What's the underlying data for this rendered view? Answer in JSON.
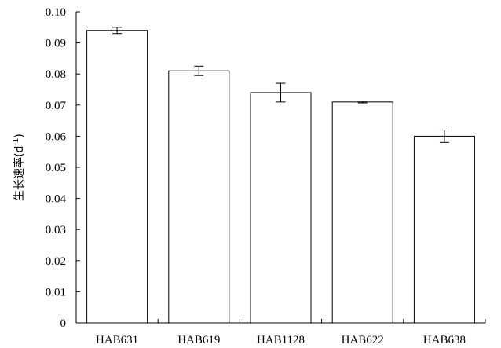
{
  "chart_data": {
    "type": "bar",
    "title": "",
    "xlabel": "",
    "ylabel": "生长速率(d",
    "ylabel_sup": "-1",
    "ylabel_close": ")",
    "categories": [
      "HAB631",
      "HAB619",
      "HAB1128",
      "HAB622",
      "HAB638"
    ],
    "values": [
      0.094,
      0.081,
      0.074,
      0.071,
      0.06
    ],
    "errors": [
      0.001,
      0.0015,
      0.003,
      0.0003,
      0.002
    ],
    "ylim": [
      0,
      0.1
    ],
    "yticks": [
      "0",
      "0.01",
      "0.02",
      "0.03",
      "0.04",
      "0.05",
      "0.06",
      "0.07",
      "0.08",
      "0.09",
      "0.10"
    ],
    "grid": false,
    "bar_fill": "#ffffff",
    "bar_stroke": "#000000"
  }
}
